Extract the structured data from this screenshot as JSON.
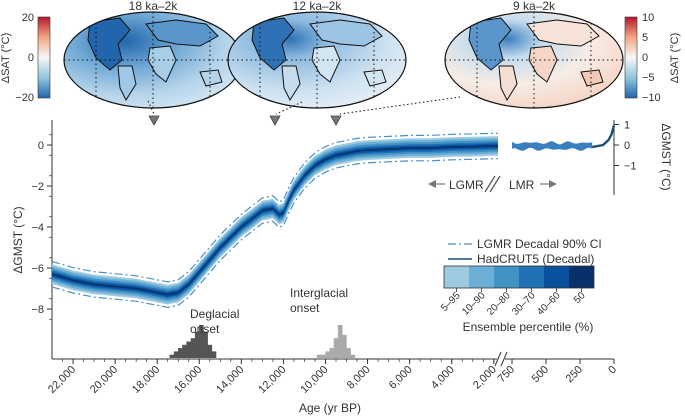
{
  "chart_data": {
    "type": "line",
    "title": "",
    "xlabel": "Age (yr BP)",
    "ylabel": "ΔGMST (°C)",
    "ylabel_right": "ΔGMST (°C)",
    "ylim": [
      -9,
      1
    ],
    "xlim_main": [
      23000,
      0
    ],
    "x_ticks_main": [
      "22,000",
      "20,000",
      "18,000",
      "16,000",
      "14,000",
      "12,000",
      "10,000",
      "8,000",
      "6,000",
      "4,000",
      "2,000"
    ],
    "x_ticks_recent": [
      "750",
      "500",
      "250",
      "0"
    ],
    "y_ticks_left": [
      "0",
      "−2",
      "−4",
      "−6",
      "−8"
    ],
    "y_ticks_right": [
      "1",
      "0",
      "−1"
    ],
    "series": [
      {
        "name": "LGMR Decadal 90% CI",
        "x": [
          23000,
          22000,
          21000,
          20000,
          19000,
          18500,
          18000,
          17500,
          17000,
          16500,
          16000,
          15500,
          15000,
          14500,
          14000,
          13500,
          13000,
          12500,
          12200,
          12000,
          11700,
          11500,
          11000,
          10500,
          10000,
          9500,
          9000,
          8500,
          8000,
          7000,
          6000,
          5000,
          4000,
          3000,
          2000,
          1800
        ],
        "y": [
          -6.3,
          -6.6,
          -6.8,
          -6.9,
          -7.0,
          -7.1,
          -7.2,
          -7.3,
          -7.2,
          -6.8,
          -6.2,
          -5.6,
          -5.0,
          -4.5,
          -4.0,
          -3.6,
          -3.2,
          -3.1,
          -3.4,
          -3.3,
          -2.6,
          -2.2,
          -1.5,
          -1.0,
          -0.7,
          -0.5,
          -0.4,
          -0.3,
          -0.25,
          -0.2,
          -0.15,
          -0.15,
          -0.1,
          -0.08,
          -0.05,
          -0.05
        ]
      },
      {
        "name": "HadCRUT5 (Decadal)",
        "x": [
          160,
          120,
          80,
          40,
          20,
          0
        ],
        "y": [
          -0.1,
          -0.05,
          0.0,
          0.25,
          0.5,
          0.95
        ]
      }
    ],
    "legend_placement": "right",
    "colorbar": {
      "title": "Ensemble percentile (%)",
      "labels": [
        "5–95",
        "10–90",
        "20–80",
        "30–70",
        "40–60",
        "50"
      ],
      "colors": [
        "#9ecae1",
        "#6baed6",
        "#4292c6",
        "#2171b5",
        "#08519c",
        "#08306b"
      ]
    },
    "annotations": {
      "lgmr": "LGMR",
      "lmr": "LMR",
      "deglacial_onset": "Deglacial\nonset",
      "interglacial_onset": "Interglacial\nonset"
    },
    "histograms": {
      "deglacial": {
        "x": [
          17300,
          17100,
          16900,
          16700,
          16500,
          16300,
          16100,
          15900,
          15700,
          15500,
          15300
        ],
        "counts": [
          1,
          2,
          3,
          4,
          5,
          6,
          8,
          10,
          8,
          4,
          2
        ]
      },
      "interglacial": {
        "x": [
          10300,
          10100,
          9900,
          9700,
          9500,
          9300,
          9100,
          8900,
          8700
        ],
        "counts": [
          1,
          1,
          2,
          3,
          6,
          10,
          7,
          3,
          1
        ]
      }
    },
    "maps": [
      {
        "label": "18 ka–2k"
      },
      {
        "label": "12 ka–2k"
      },
      {
        "label": "9 ka–2k"
      }
    ],
    "map_colorbar_left": {
      "label": "ΔSAT (°C)",
      "ticks": [
        "20",
        "0",
        "−20"
      ]
    },
    "map_colorbar_right": {
      "label": "ΔSAT (°C)",
      "ticks": [
        "10",
        "5",
        "0",
        "−5",
        "−10"
      ]
    }
  }
}
